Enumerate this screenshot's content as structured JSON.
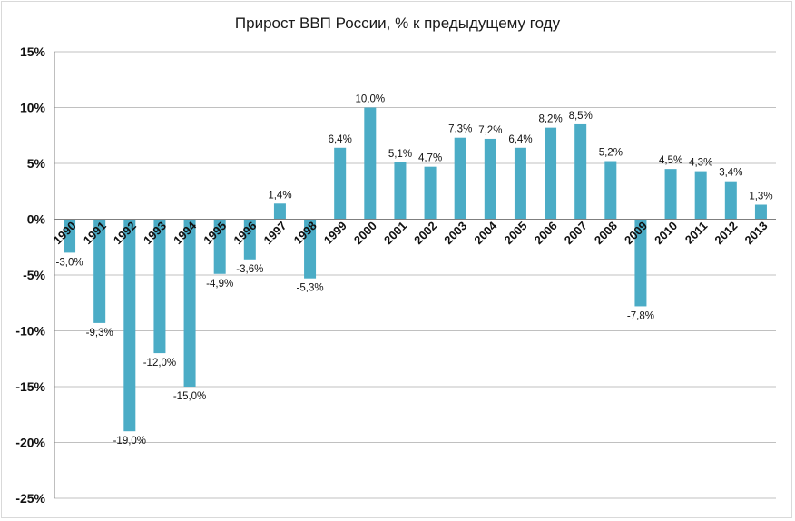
{
  "chart_data": {
    "type": "bar",
    "title": "Прирост ВВП России, % к предыдущему году",
    "categories": [
      "1990",
      "1991",
      "1992",
      "1993",
      "1994",
      "1995",
      "1996",
      "1997",
      "1998",
      "1999",
      "2000",
      "2001",
      "2002",
      "2003",
      "2004",
      "2005",
      "2006",
      "2007",
      "2008",
      "2009",
      "2010",
      "2011",
      "2012",
      "2013"
    ],
    "values": [
      -3.0,
      -9.3,
      -19.0,
      -12.0,
      -15.0,
      -4.9,
      -3.6,
      1.4,
      -5.3,
      6.4,
      10.0,
      5.1,
      4.7,
      7.3,
      7.2,
      6.4,
      8.2,
      8.5,
      5.2,
      -7.8,
      4.5,
      4.3,
      3.4,
      1.3
    ],
    "data_labels": [
      "-3,0%",
      "-9,3%",
      "-19,0%",
      "-12,0%",
      "-15,0%",
      "-4,9%",
      "-3,6%",
      "1,4%",
      "-5,3%",
      "6,4%",
      "10,0%",
      "5,1%",
      "4,7%",
      "7,3%",
      "7,2%",
      "6,4%",
      "8,2%",
      "8,5%",
      "5,2%",
      "-7,8%",
      "4,5%",
      "4,3%",
      "3,4%",
      "1,3%"
    ],
    "ylim": [
      -25,
      15
    ],
    "yticks": [
      15,
      10,
      5,
      0,
      -5,
      -10,
      -15,
      -20,
      -25
    ],
    "ytick_labels": [
      "15%",
      "10%",
      "5%",
      "0%",
      "-5%",
      "-10%",
      "-15%",
      "-20%",
      "-25%"
    ],
    "xlabel": "",
    "ylabel": "",
    "grid": true,
    "colors": {
      "bar": "#4bacc6",
      "grid": "#c0c0c0",
      "axis": "#7f7f7f"
    }
  }
}
